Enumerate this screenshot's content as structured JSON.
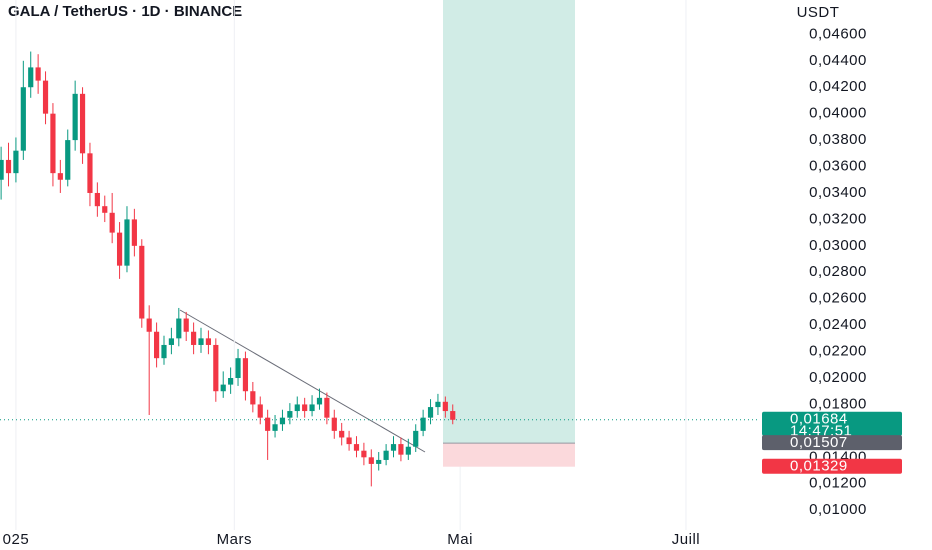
{
  "chart_data": {
    "type": "candlestick",
    "title": "GALA / TetherUS · 1D · BINANCE",
    "y_axis_label": "USDT",
    "x": [
      -4,
      -2,
      0,
      2,
      4,
      6,
      8,
      10,
      12,
      14,
      16,
      18,
      20,
      22,
      24,
      26,
      28,
      30,
      32,
      34,
      36,
      38,
      40,
      42,
      44,
      46,
      48,
      50,
      52,
      54,
      56,
      58,
      60,
      62,
      64,
      66,
      68,
      70,
      72,
      74,
      76,
      78,
      80,
      82,
      84,
      86,
      88,
      90,
      92,
      94,
      96,
      98,
      100,
      102,
      104,
      106,
      108,
      110,
      112,
      114,
      116,
      118
    ],
    "open": [
      0.035,
      0.0365,
      0.0355,
      0.0372,
      0.042,
      0.0435,
      0.0425,
      0.04,
      0.0355,
      0.035,
      0.038,
      0.0415,
      0.037,
      0.034,
      0.033,
      0.0325,
      0.031,
      0.0285,
      0.032,
      0.03,
      0.0245,
      0.0235,
      0.0215,
      0.0225,
      0.023,
      0.0245,
      0.0235,
      0.0225,
      0.023,
      0.0225,
      0.019,
      0.0195,
      0.02,
      0.0215,
      0.019,
      0.018,
      0.017,
      0.016,
      0.0165,
      0.017,
      0.0175,
      0.018,
      0.0175,
      0.018,
      0.0185,
      0.017,
      0.016,
      0.0155,
      0.015,
      0.0145,
      0.014,
      0.0135,
      0.0138,
      0.0145,
      0.015,
      0.0142,
      0.0148,
      0.016,
      0.017,
      0.0178,
      0.0182,
      0.0175
    ],
    "high": [
      0.0375,
      0.0378,
      0.0382,
      0.044,
      0.0447,
      0.0445,
      0.0432,
      0.0408,
      0.0365,
      0.0388,
      0.0425,
      0.042,
      0.0378,
      0.0348,
      0.0338,
      0.034,
      0.0318,
      0.033,
      0.0328,
      0.0305,
      0.0255,
      0.0242,
      0.0232,
      0.0238,
      0.0253,
      0.025,
      0.0242,
      0.0238,
      0.0236,
      0.023,
      0.0205,
      0.0208,
      0.0222,
      0.022,
      0.0197,
      0.0186,
      0.0176,
      0.0172,
      0.0176,
      0.0181,
      0.0186,
      0.0185,
      0.0187,
      0.0192,
      0.0189,
      0.0176,
      0.0166,
      0.016,
      0.0156,
      0.0151,
      0.0146,
      0.0144,
      0.015,
      0.0156,
      0.0155,
      0.0154,
      0.0165,
      0.0176,
      0.0184,
      0.0188,
      0.0186,
      0.018
    ],
    "low": [
      0.0335,
      0.0345,
      0.0348,
      0.0365,
      0.0412,
      0.0415,
      0.0392,
      0.0345,
      0.034,
      0.0345,
      0.0372,
      0.0362,
      0.033,
      0.0322,
      0.0318,
      0.0302,
      0.0275,
      0.028,
      0.0292,
      0.0238,
      0.0172,
      0.0208,
      0.021,
      0.0218,
      0.0224,
      0.0228,
      0.0218,
      0.0219,
      0.0218,
      0.0182,
      0.0185,
      0.0188,
      0.0194,
      0.0183,
      0.0174,
      0.0165,
      0.0138,
      0.0155,
      0.016,
      0.0165,
      0.017,
      0.017,
      0.0171,
      0.0176,
      0.0165,
      0.0154,
      0.0149,
      0.0145,
      0.014,
      0.0134,
      0.0118,
      0.013,
      0.0134,
      0.014,
      0.0137,
      0.0138,
      0.0144,
      0.0156,
      0.0165,
      0.0172,
      0.017,
      0.0165
    ],
    "close": [
      0.0365,
      0.0355,
      0.0372,
      0.042,
      0.0435,
      0.0425,
      0.04,
      0.0355,
      0.035,
      0.038,
      0.0415,
      0.037,
      0.034,
      0.033,
      0.0325,
      0.031,
      0.0285,
      0.032,
      0.03,
      0.0245,
      0.0235,
      0.0215,
      0.0225,
      0.023,
      0.0245,
      0.0235,
      0.0225,
      0.023,
      0.0225,
      0.019,
      0.0195,
      0.02,
      0.0215,
      0.019,
      0.018,
      0.017,
      0.016,
      0.0165,
      0.017,
      0.0175,
      0.018,
      0.0175,
      0.018,
      0.0185,
      0.017,
      0.016,
      0.0155,
      0.015,
      0.0145,
      0.014,
      0.0135,
      0.0138,
      0.0145,
      0.015,
      0.0142,
      0.0148,
      0.016,
      0.017,
      0.0178,
      0.0182,
      0.0175,
      0.01684
    ],
    "up_color": "#089981",
    "down_color": "#f23645",
    "xlim": [
      -4.3,
      201
    ],
    "xticks": [
      {
        "value": 0,
        "label": "025"
      },
      {
        "value": 59,
        "label": "Mars"
      },
      {
        "value": 120,
        "label": "Mai"
      },
      {
        "value": 181,
        "label": "Juill"
      }
    ],
    "ylim": [
      0.0085,
      0.0486
    ],
    "yticks": [
      {
        "value": 0.046,
        "label": "0,04600"
      },
      {
        "value": 0.044,
        "label": "0,04400"
      },
      {
        "value": 0.042,
        "label": "0,04200"
      },
      {
        "value": 0.04,
        "label": "0,04000"
      },
      {
        "value": 0.038,
        "label": "0,03800"
      },
      {
        "value": 0.036,
        "label": "0,03600"
      },
      {
        "value": 0.034,
        "label": "0,03400"
      },
      {
        "value": 0.032,
        "label": "0,03200"
      },
      {
        "value": 0.03,
        "label": "0,03000"
      },
      {
        "value": 0.028,
        "label": "0,02800"
      },
      {
        "value": 0.026,
        "label": "0,02600"
      },
      {
        "value": 0.024,
        "label": "0,02400"
      },
      {
        "value": 0.022,
        "label": "0,02200"
      },
      {
        "value": 0.02,
        "label": "0,02000"
      },
      {
        "value": 0.018,
        "label": "0,01800"
      },
      {
        "value": 0.016,
        "label": "0,01600"
      },
      {
        "value": 0.014,
        "label": "0,01400"
      },
      {
        "value": 0.012,
        "label": "0,01200"
      },
      {
        "value": 0.01,
        "label": "0,01000"
      }
    ],
    "grid": true,
    "position": {
      "entry": {
        "value": 0.01507,
        "label": "0,01507"
      },
      "stop": {
        "value": 0.01329,
        "label": "0,01329"
      },
      "profit_color": "#d1ece6",
      "loss_color": "#fbd9dc"
    },
    "last_price": {
      "value": 0.01684,
      "label": "0,01684",
      "countdown": "14:47:51",
      "color": "#089981"
    },
    "entry_tag_color": "#5d606b",
    "stop_tag_color": "#f23645"
  }
}
